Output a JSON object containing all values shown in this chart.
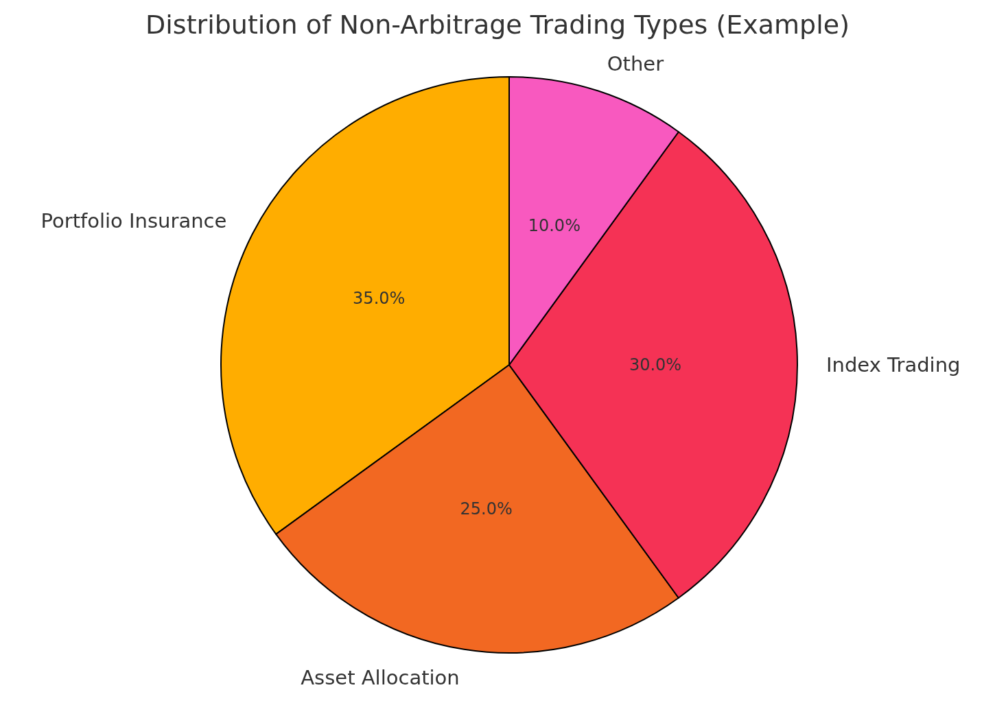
{
  "chart_data": {
    "type": "pie",
    "title": "Distribution of Non-Arbitrage Trading Types (Example)",
    "categories": [
      "Portfolio Insurance",
      "Asset Allocation",
      "Index Trading",
      "Other"
    ],
    "values": [
      35,
      25,
      30,
      10
    ],
    "colors": [
      "#ffad00",
      "#f26822",
      "#f53255",
      "#f859bf"
    ],
    "value_labels": [
      "35.0%",
      "25.0%",
      "30.0%",
      "10.0%"
    ]
  }
}
